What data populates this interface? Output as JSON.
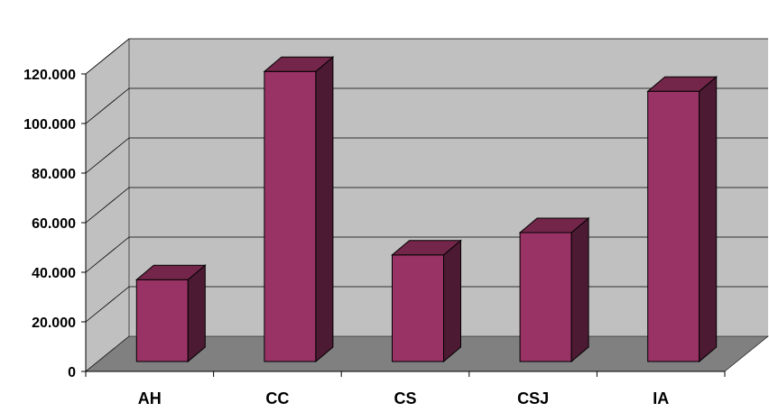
{
  "chart_data": {
    "type": "bar",
    "categories": [
      "AH",
      "CC",
      "CS",
      "CSJ",
      "IA"
    ],
    "values": [
      33000,
      117000,
      43000,
      52000,
      109000
    ],
    "y_tick_labels": [
      "0",
      "20.000",
      "40.000",
      "60.000",
      "80.000",
      "100.000",
      "120.000"
    ],
    "y_ticks": [
      0,
      20000,
      40000,
      60000,
      80000,
      100000,
      120000
    ],
    "ylim": [
      0,
      120000
    ],
    "grid": true,
    "legend": "none",
    "title": "",
    "xlabel": "",
    "ylabel": "",
    "colors": {
      "bar_front": "#993366",
      "bar_side": "#4d1a33",
      "bar_top": "#732649",
      "wall": "#c0c0c0",
      "floor": "#808080",
      "gridline": "#000000"
    }
  }
}
